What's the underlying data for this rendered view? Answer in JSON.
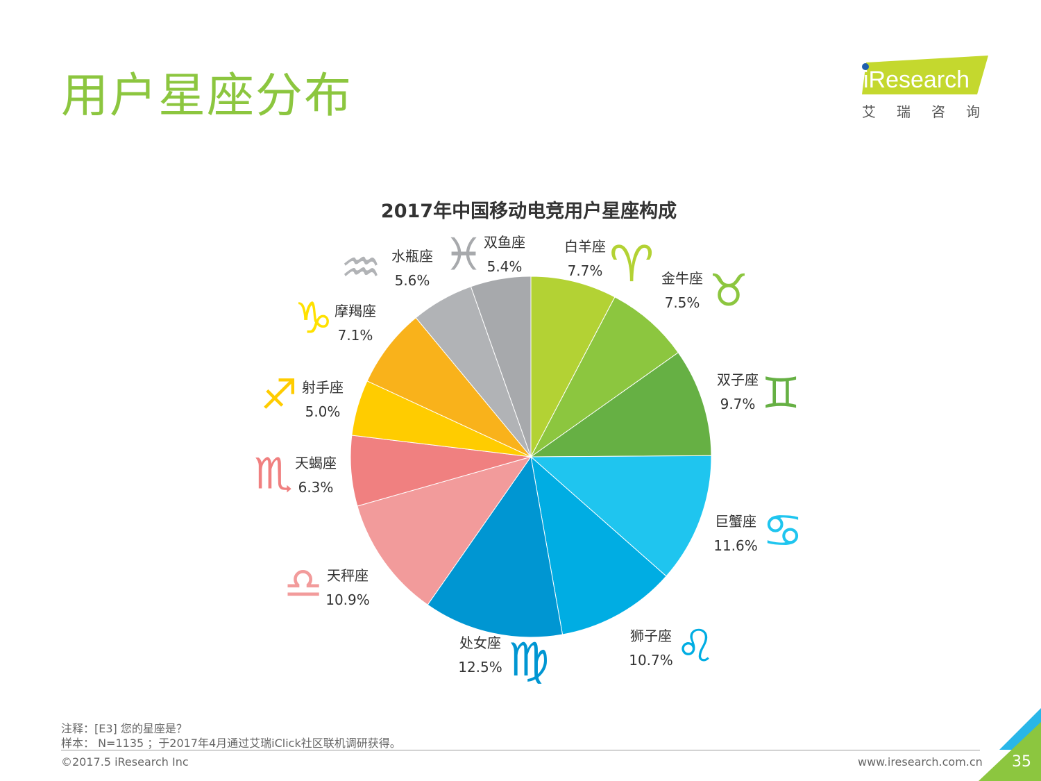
{
  "page": {
    "title": "用户星座分布",
    "page_number": "35"
  },
  "logo": {
    "brand": "iResearch",
    "subtitle": "艾瑞咨询",
    "accent": "#c4d82e",
    "dot": "#1f5fad"
  },
  "notes": {
    "note": "注释：[E3] 您的星座是？",
    "sample": "样本： N=1135 ；于2017年4月通过艾瑞iClick社区联机调研获得。"
  },
  "footer": {
    "copyright": "©2017.5 iResearch Inc",
    "url": "www.iresearch.com.cn"
  },
  "chart_data": {
    "type": "pie",
    "title": "2017年中国移动电竞用户星座构成",
    "unit": "%",
    "slices": [
      {
        "label": "白羊座",
        "value": 7.7,
        "value_text": "7.7%",
        "color": "#b3d234",
        "symbol": "♈",
        "symbol_color": "#b3d234"
      },
      {
        "label": "金牛座",
        "value": 7.5,
        "value_text": "7.5%",
        "color": "#8cc63f",
        "symbol": "♉",
        "symbol_color": "#8cc63f"
      },
      {
        "label": "双子座",
        "value": 9.7,
        "value_text": "9.7%",
        "color": "#66b044",
        "symbol": "♊",
        "symbol_color": "#66b044"
      },
      {
        "label": "巨蟹座",
        "value": 11.6,
        "value_text": "11.6%",
        "color": "#1fc5ef",
        "symbol": "♋",
        "symbol_color": "#1fc5ef"
      },
      {
        "label": "狮子座",
        "value": 10.7,
        "value_text": "10.7%",
        "color": "#00ade3",
        "symbol": "♌",
        "symbol_color": "#00ade3"
      },
      {
        "label": "处女座",
        "value": 12.5,
        "value_text": "12.5%",
        "color": "#0096d2",
        "symbol": "♍",
        "symbol_color": "#0096d2"
      },
      {
        "label": "天秤座",
        "value": 10.9,
        "value_text": "10.9%",
        "color": "#f29b9b",
        "symbol": "♎",
        "symbol_color": "#f29b9b"
      },
      {
        "label": "天蝎座",
        "value": 6.3,
        "value_text": "6.3%",
        "color": "#f08080",
        "symbol": "♏",
        "symbol_color": "#f08080"
      },
      {
        "label": "射手座",
        "value": 5.0,
        "value_text": "5.0%",
        "color": "#ffcc00",
        "symbol": "♐",
        "symbol_color": "#ffcc00"
      },
      {
        "label": "摩羯座",
        "value": 7.1,
        "value_text": "7.1%",
        "color": "#f9b21b",
        "symbol": "♑",
        "symbol_color": "#ffe100"
      },
      {
        "label": "水瓶座",
        "value": 5.6,
        "value_text": "5.6%",
        "color": "#b1b3b6",
        "symbol": "♒",
        "symbol_color": "#b1b3b6"
      },
      {
        "label": "双鱼座",
        "value": 5.4,
        "value_text": "5.4%",
        "color": "#a7a9ac",
        "symbol": "♓",
        "symbol_color": "#a7a9ac"
      }
    ]
  }
}
